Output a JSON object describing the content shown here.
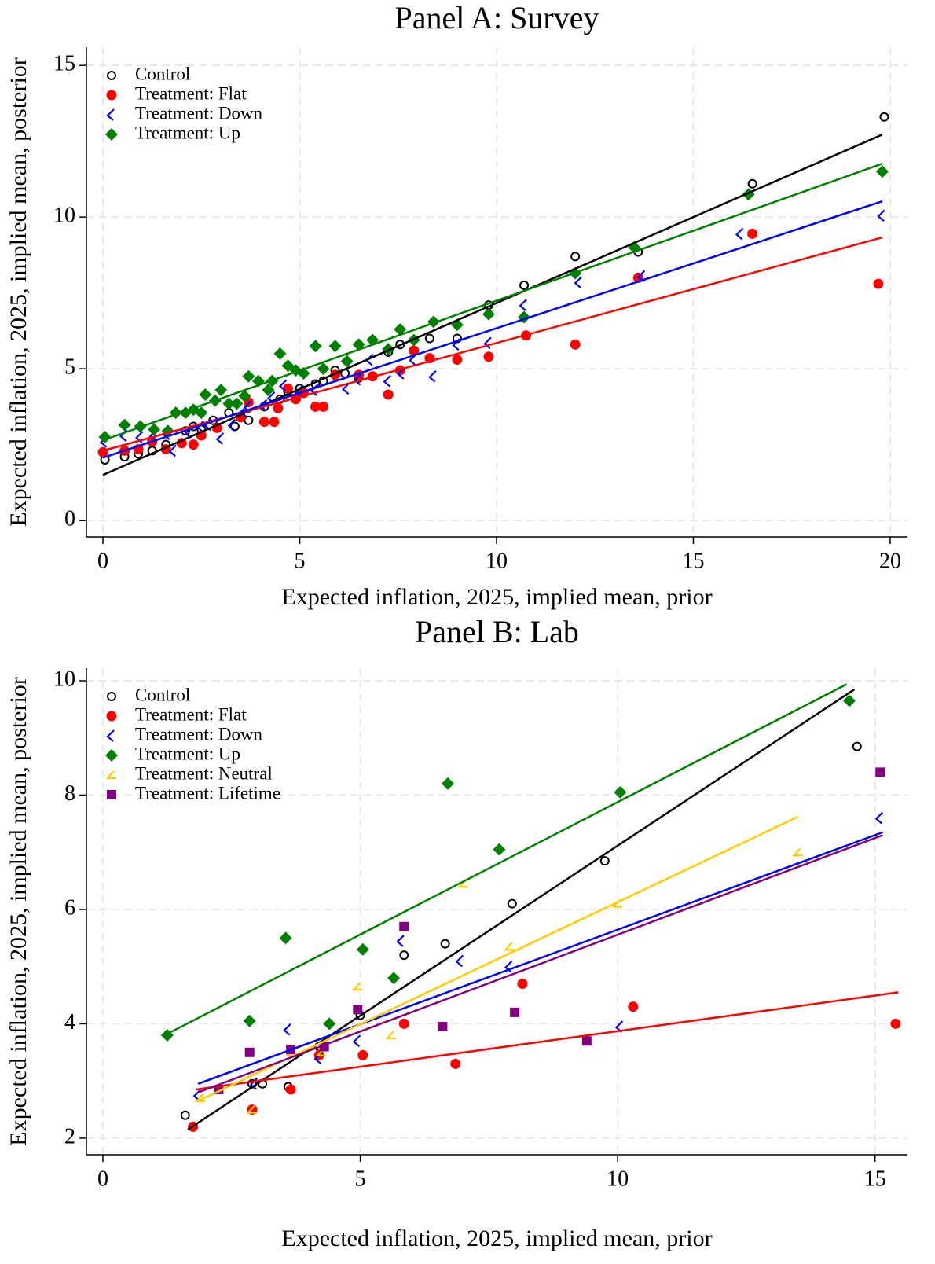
{
  "chart_data": [
    {
      "type": "scatter",
      "title": "Panel A: Survey",
      "x_label": "Expected inflation, 2025, implied mean, prior",
      "y_label": "Expected inflation, 2025, implied mean, posterior",
      "xlim": [
        -0.42,
        20.44
      ],
      "ylim": [
        -0.54,
        15.6
      ],
      "xticks": [
        0,
        5,
        10,
        15,
        20
      ],
      "yticks": [
        0,
        5,
        10,
        15
      ],
      "grid": true,
      "legend": "top-left",
      "series": [
        {
          "name": "Control",
          "color": "#000000",
          "marker": "hollow-circle",
          "x": [
            0.05,
            0.55,
            0.9,
            1.25,
            1.6,
            2.1,
            2.3,
            2.5,
            2.8,
            3.2,
            3.35,
            3.7,
            4.1,
            4.5,
            4.7,
            5.0,
            5.4,
            5.6,
            5.9,
            6.15,
            6.5,
            7.25,
            7.55,
            8.3,
            9.0,
            9.8,
            10.7,
            12.0,
            13.6,
            16.5,
            19.85
          ],
          "y": [
            2.0,
            2.1,
            2.2,
            2.3,
            2.5,
            2.95,
            3.1,
            3.0,
            3.3,
            3.55,
            3.1,
            3.3,
            3.75,
            4.0,
            4.25,
            4.35,
            4.5,
            4.6,
            4.95,
            4.85,
            4.7,
            5.55,
            5.8,
            6.0,
            6.0,
            7.1,
            7.75,
            8.7,
            8.85,
            11.1,
            13.3
          ],
          "fit": {
            "x": [
              0,
              19.8
            ],
            "y": [
              1.5,
              12.72
            ]
          }
        },
        {
          "name": "Treatment: Flat",
          "color": "#ff0000",
          "marker": "circle",
          "x": [
            0.0,
            0.55,
            0.9,
            1.25,
            1.6,
            2.0,
            2.3,
            2.5,
            2.9,
            3.5,
            3.7,
            4.1,
            4.35,
            4.45,
            4.7,
            4.9,
            5.1,
            5.4,
            5.6,
            5.9,
            6.5,
            6.85,
            7.25,
            7.55,
            7.9,
            8.3,
            9.0,
            9.8,
            10.75,
            12.0,
            13.6,
            16.5,
            19.7
          ],
          "y": [
            2.25,
            2.3,
            2.35,
            2.6,
            2.35,
            2.55,
            2.5,
            2.8,
            3.05,
            3.4,
            3.9,
            3.25,
            3.25,
            3.7,
            4.35,
            4.0,
            4.2,
            3.75,
            3.75,
            4.8,
            4.8,
            4.75,
            4.15,
            4.95,
            5.6,
            5.35,
            5.3,
            5.4,
            6.1,
            5.8,
            8.0,
            9.45,
            7.8
          ],
          "fit": {
            "x": [
              0,
              19.8
            ],
            "y": [
              2.3,
              9.33
            ]
          }
        },
        {
          "name": "Treatment: Down",
          "color": "#0000ff",
          "marker": "chevron",
          "x": [
            0.05,
            0.55,
            0.95,
            1.3,
            1.65,
            1.8,
            2.2,
            2.5,
            2.7,
            3.0,
            3.3,
            3.6,
            3.7,
            4.1,
            4.3,
            4.6,
            5.0,
            5.4,
            6.2,
            6.5,
            6.8,
            7.25,
            7.6,
            7.9,
            8.4,
            9.0,
            9.8,
            10.7,
            12.1,
            13.7,
            16.2,
            19.8
          ],
          "y": [
            2.6,
            2.8,
            2.75,
            2.8,
            2.85,
            2.3,
            2.9,
            3.1,
            3.15,
            2.7,
            3.15,
            3.6,
            3.75,
            3.8,
            4.05,
            4.45,
            4.25,
            4.3,
            4.35,
            4.65,
            5.3,
            4.6,
            4.85,
            5.3,
            4.75,
            5.8,
            5.85,
            7.1,
            7.85,
            8.05,
            9.45,
            10.05
          ],
          "fit": {
            "x": [
              0,
              19.8
            ],
            "y": [
              2.07,
              10.52
            ]
          }
        },
        {
          "name": "Treatment: Up",
          "color": "#008000",
          "marker": "diamond",
          "x": [
            0.05,
            0.55,
            0.95,
            1.3,
            1.65,
            1.85,
            2.1,
            2.3,
            2.5,
            2.6,
            2.85,
            3.0,
            3.2,
            3.4,
            3.6,
            3.7,
            3.95,
            4.2,
            4.3,
            4.5,
            4.7,
            4.9,
            5.1,
            5.4,
            5.6,
            5.9,
            6.2,
            6.5,
            6.85,
            7.25,
            7.55,
            7.9,
            8.4,
            9.0,
            9.8,
            10.7,
            12.0,
            13.5,
            16.4,
            19.8
          ],
          "y": [
            2.75,
            3.15,
            3.1,
            3.0,
            2.95,
            3.55,
            3.55,
            3.65,
            3.55,
            4.15,
            3.95,
            4.3,
            3.85,
            3.85,
            4.1,
            4.75,
            4.6,
            4.3,
            4.6,
            5.5,
            5.1,
            4.95,
            4.85,
            5.75,
            5.0,
            5.75,
            5.25,
            5.8,
            5.95,
            5.65,
            6.3,
            5.95,
            6.55,
            6.45,
            6.8,
            6.7,
            8.15,
            9.0,
            10.75,
            11.5
          ],
          "fit": {
            "x": [
              0,
              19.8
            ],
            "y": [
              2.64,
              11.76
            ]
          }
        }
      ]
    },
    {
      "type": "scatter",
      "title": "Panel B: Lab",
      "x_label": "Expected inflation, 2025, implied mean, prior",
      "y_label": "Expected inflation, 2025, implied mean, posterior",
      "xlim": [
        -0.32,
        15.63
      ],
      "ylim": [
        1.71,
        10.22
      ],
      "xticks": [
        0,
        5,
        10,
        15
      ],
      "yticks": [
        2,
        4,
        6,
        8,
        10
      ],
      "grid": true,
      "legend": "top-left",
      "series": [
        {
          "name": "Control",
          "color": "#000000",
          "marker": "hollow-circle",
          "x": [
            1.6,
            2.9,
            3.1,
            3.6,
            4.2,
            5.0,
            5.85,
            6.65,
            7.95,
            9.75,
            14.65
          ],
          "y": [
            2.4,
            2.95,
            2.95,
            2.9,
            3.6,
            4.15,
            5.2,
            5.4,
            6.1,
            6.85,
            8.85
          ],
          "fit": {
            "x": [
              1.65,
              14.6
            ],
            "y": [
              2.15,
              9.85
            ]
          }
        },
        {
          "name": "Treatment: Flat",
          "color": "#ff0000",
          "marker": "circle",
          "x": [
            1.75,
            2.9,
            3.65,
            4.2,
            5.05,
            5.85,
            6.85,
            8.15,
            10.3,
            15.4
          ],
          "y": [
            2.2,
            2.5,
            2.85,
            3.45,
            3.45,
            4.0,
            3.3,
            4.7,
            4.3,
            4.0
          ],
          "fit": {
            "x": [
              1.8,
              15.45
            ],
            "y": [
              2.85,
              4.55
            ]
          }
        },
        {
          "name": "Treatment: Down",
          "color": "#0000ff",
          "marker": "chevron",
          "x": [
            1.85,
            2.95,
            3.6,
            4.2,
            4.95,
            5.8,
            6.95,
            7.9,
            10.05,
            15.1
          ],
          "y": [
            2.75,
            2.95,
            3.9,
            3.4,
            3.7,
            5.45,
            5.1,
            5.0,
            3.95,
            7.6
          ],
          "fit": {
            "x": [
              1.85,
              15.15
            ],
            "y": [
              2.95,
              7.35
            ]
          }
        },
        {
          "name": "Treatment: Up",
          "color": "#008000",
          "marker": "diamond",
          "x": [
            1.25,
            2.85,
            3.55,
            4.4,
            5.05,
            5.65,
            6.7,
            7.7,
            10.05,
            14.5
          ],
          "y": [
            3.8,
            4.05,
            5.5,
            4.0,
            5.3,
            4.8,
            8.2,
            7.05,
            8.05,
            9.65
          ],
          "fit": {
            "x": [
              1.2,
              14.45
            ],
            "y": [
              3.8,
              9.94
            ]
          }
        },
        {
          "name": "Treatment: Neutral",
          "color": "#ffcc00",
          "marker": "angle",
          "x": [
            1.9,
            2.9,
            3.65,
            4.25,
            4.95,
            5.6,
            7.0,
            7.9,
            10.0,
            13.5
          ],
          "y": [
            2.7,
            2.5,
            3.5,
            3.5,
            4.65,
            3.8,
            6.45,
            5.35,
            6.1,
            7.0
          ],
          "fit": {
            "x": [
              1.85,
              13.5
            ],
            "y": [
              2.65,
              7.62
            ]
          }
        },
        {
          "name": "Treatment: Lifetime",
          "color": "#800080",
          "marker": "square",
          "x": [
            2.25,
            2.85,
            3.65,
            4.3,
            4.95,
            5.85,
            6.6,
            8.0,
            9.4,
            15.1
          ],
          "y": [
            2.85,
            3.5,
            3.55,
            3.6,
            4.25,
            5.7,
            3.95,
            4.2,
            3.7,
            8.4
          ],
          "fit": {
            "x": [
              1.85,
              15.15
            ],
            "y": [
              2.8,
              7.3
            ]
          }
        }
      ]
    }
  ]
}
